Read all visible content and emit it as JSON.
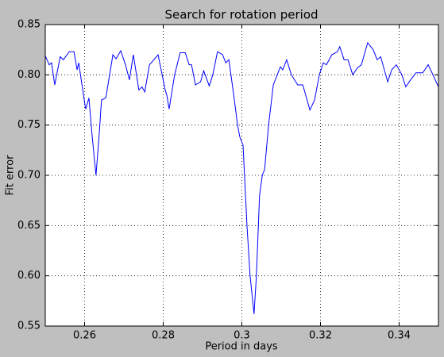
{
  "chart_data": {
    "type": "line",
    "title": "Search for rotation period",
    "x_label": "Period in days",
    "y_label": "Fit error",
    "xlim": [
      0.25,
      0.35
    ],
    "ylim": [
      0.55,
      0.85
    ],
    "xticks": [
      0.26,
      0.28,
      0.3,
      0.32,
      0.34
    ],
    "yticks": [
      0.55,
      {
        "value": 0.6,
        "label": "0.60"
      },
      0.65,
      {
        "value": 0.7,
        "label": "0.70"
      },
      0.75,
      {
        "value": 0.8,
        "label": "0.80"
      },
      0.85
    ],
    "grid": true,
    "series": [
      {
        "color": "#0000ff",
        "x": [
          0.25,
          0.251,
          0.2516,
          0.2524,
          0.2538,
          0.2546,
          0.2561,
          0.2573,
          0.2581,
          0.2585,
          0.2601,
          0.2603,
          0.2611,
          0.2619,
          0.2629,
          0.2637,
          0.2643,
          0.2654,
          0.2672,
          0.268,
          0.2692,
          0.2704,
          0.2714,
          0.2724,
          0.2738,
          0.2746,
          0.2753,
          0.2765,
          0.2787,
          0.2805,
          0.2809,
          0.2815,
          0.2829,
          0.2843,
          0.2856,
          0.2866,
          0.2872,
          0.2882,
          0.2895,
          0.2903,
          0.2917,
          0.2926,
          0.2938,
          0.2951,
          0.2959,
          0.2967,
          0.2981,
          0.2989,
          0.2995,
          0.3003,
          0.3013,
          0.3021,
          0.3031,
          0.3037,
          0.3045,
          0.3052,
          0.3058,
          0.3068,
          0.308,
          0.309,
          0.3098,
          0.3104,
          0.3114,
          0.3126,
          0.3142,
          0.3155,
          0.3173,
          0.3185,
          0.3197,
          0.3207,
          0.3215,
          0.3229,
          0.3243,
          0.3249,
          0.326,
          0.327,
          0.3282,
          0.3294,
          0.3304,
          0.332,
          0.3334,
          0.3344,
          0.3353,
          0.3371,
          0.3381,
          0.3393,
          0.3407,
          0.3417,
          0.3429,
          0.3443,
          0.346,
          0.3474,
          0.3486,
          0.35
        ],
        "values": [
          0.819,
          0.81,
          0.812,
          0.79,
          0.818,
          0.815,
          0.823,
          0.823,
          0.805,
          0.812,
          0.77,
          0.766,
          0.777,
          0.74,
          0.7,
          0.74,
          0.775,
          0.777,
          0.82,
          0.816,
          0.824,
          0.81,
          0.795,
          0.82,
          0.785,
          0.788,
          0.783,
          0.81,
          0.82,
          0.785,
          0.78,
          0.766,
          0.8,
          0.822,
          0.822,
          0.81,
          0.81,
          0.79,
          0.793,
          0.804,
          0.789,
          0.8,
          0.823,
          0.82,
          0.812,
          0.815,
          0.775,
          0.75,
          0.738,
          0.73,
          0.65,
          0.6,
          0.562,
          0.6,
          0.68,
          0.7,
          0.706,
          0.75,
          0.79,
          0.8,
          0.808,
          0.805,
          0.815,
          0.8,
          0.79,
          0.79,
          0.765,
          0.775,
          0.8,
          0.812,
          0.81,
          0.82,
          0.823,
          0.828,
          0.815,
          0.815,
          0.8,
          0.807,
          0.81,
          0.832,
          0.825,
          0.815,
          0.818,
          0.793,
          0.805,
          0.81,
          0.8,
          0.788,
          0.795,
          0.802,
          0.802,
          0.81,
          0.8,
          0.788
        ]
      }
    ]
  }
}
